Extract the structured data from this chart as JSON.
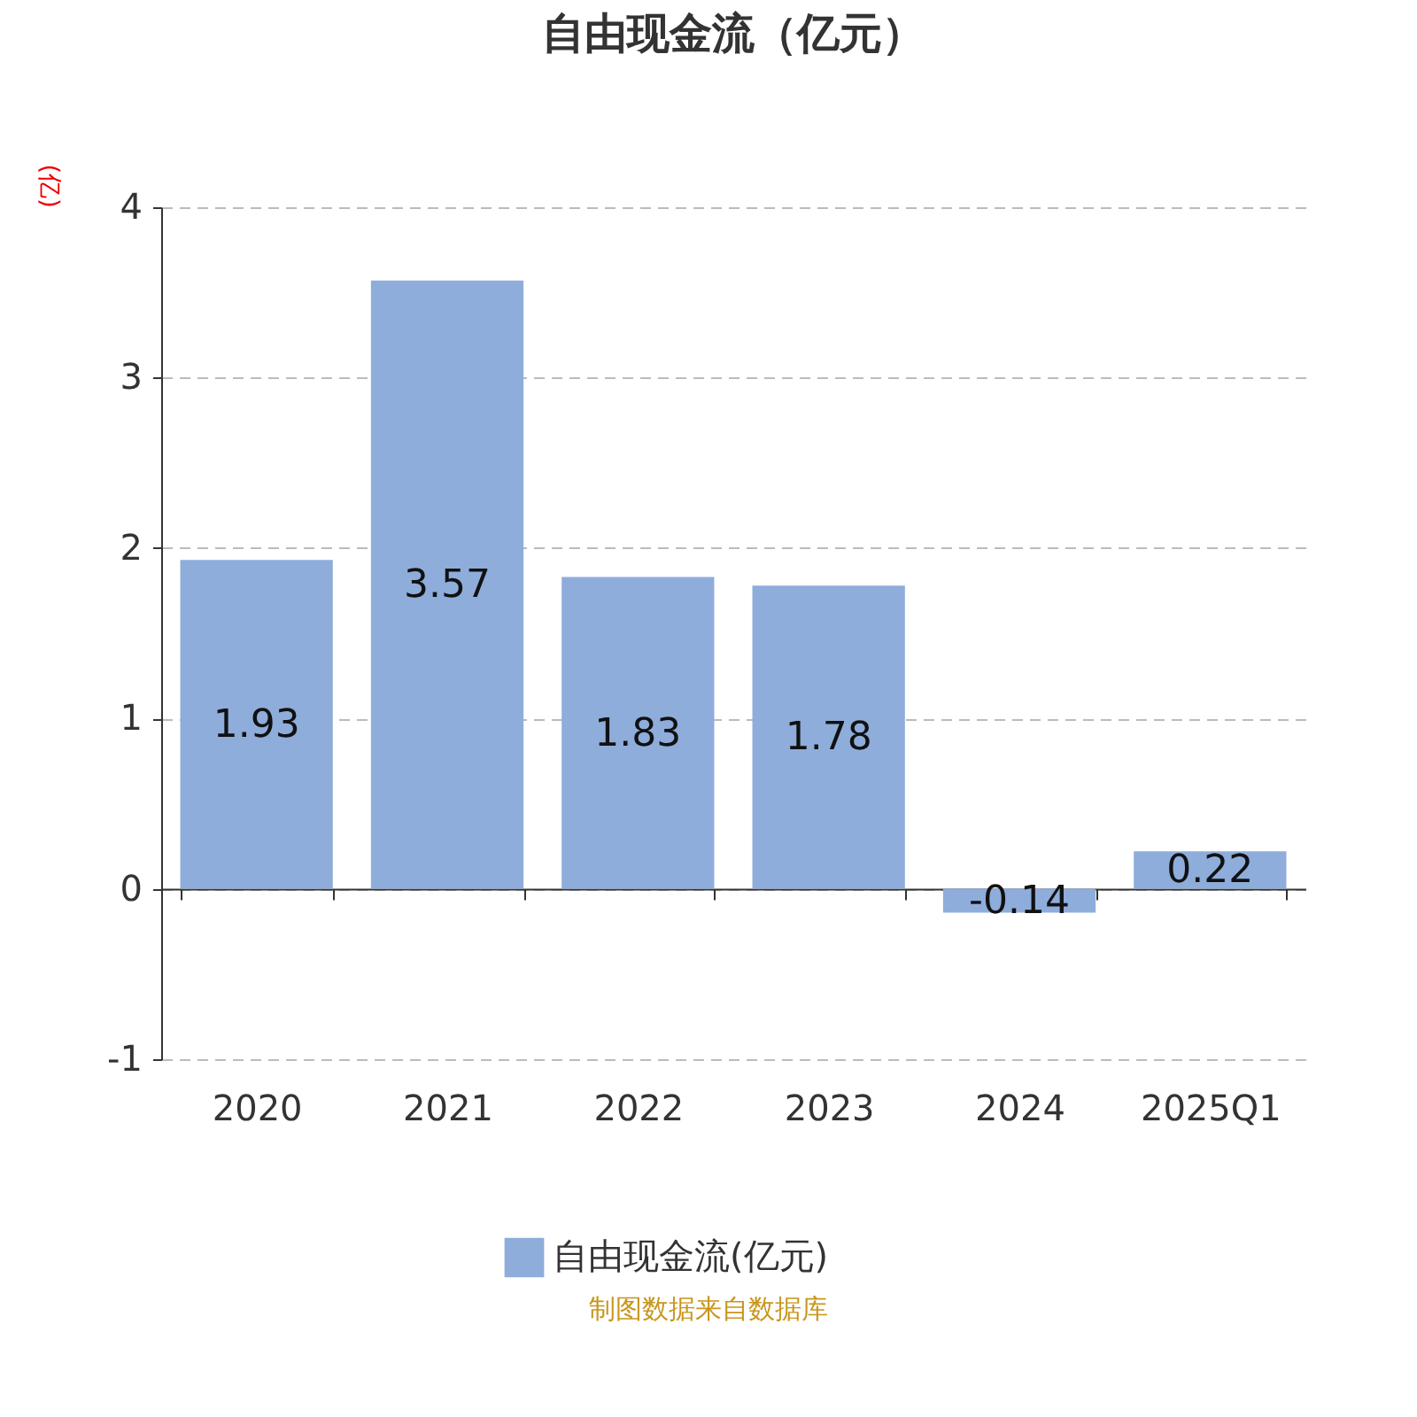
{
  "chart_data": {
    "type": "bar",
    "title": "自由现金流（亿元）",
    "ylabel": "(亿)",
    "categories": [
      "2020",
      "2021",
      "2022",
      "2023",
      "2024",
      "2025Q1"
    ],
    "series": [
      {
        "name": "自由现金流(亿元)",
        "color": "#8eaddb",
        "values": [
          1.93,
          3.57,
          1.83,
          1.78,
          -0.14,
          0.22
        ]
      }
    ],
    "ylim": [
      -1,
      4
    ],
    "yticks": [
      -1,
      0,
      1,
      2,
      3,
      4
    ],
    "grid": "y",
    "legend": "bottom",
    "data_labels": true,
    "annotations": [
      "制图数据来自数据库"
    ]
  }
}
